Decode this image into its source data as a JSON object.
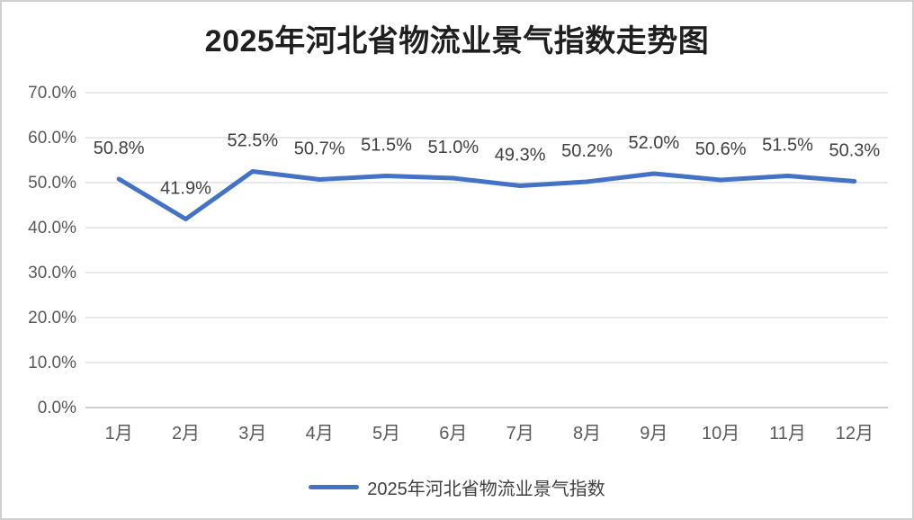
{
  "page": {
    "background": "#ffffff",
    "frame_border_color": "#d0d0d0"
  },
  "chart_data": {
    "type": "line",
    "title": "2025年河北省物流业景气指数走势图",
    "categories": [
      "1月",
      "2月",
      "3月",
      "4月",
      "5月",
      "6月",
      "7月",
      "8月",
      "9月",
      "10月",
      "11月",
      "12月"
    ],
    "series": [
      {
        "name": "2025年河北省物流业景气指数",
        "values": [
          50.8,
          41.9,
          52.5,
          50.7,
          51.5,
          51.0,
          49.3,
          50.2,
          52.0,
          50.6,
          51.5,
          50.3
        ],
        "data_labels": [
          "50.8%",
          "41.9%",
          "52.5%",
          "50.7%",
          "51.5%",
          "51.0%",
          "49.3%",
          "50.2%",
          "52.0%",
          "50.6%",
          "51.5%",
          "50.3%"
        ],
        "color": "#4472C4"
      }
    ],
    "xlabel": "",
    "ylabel": "",
    "ylim": [
      0,
      70
    ],
    "y_tick_values": [
      0,
      10,
      20,
      30,
      40,
      50,
      60,
      70
    ],
    "y_tick_labels": [
      "0.0%",
      "10.0%",
      "20.0%",
      "30.0%",
      "40.0%",
      "50.0%",
      "60.0%",
      "70.0%"
    ],
    "grid": true,
    "legend_position": "bottom",
    "colors": {
      "line": "#4472C4",
      "gridline": "#D9D9D9",
      "axis_line": "#BFBFBF",
      "tick_label": "#595959",
      "data_label": "#404040",
      "title": "#1F1F1F"
    }
  },
  "legend": {
    "label": "2025年河北省物流业景气指数"
  }
}
